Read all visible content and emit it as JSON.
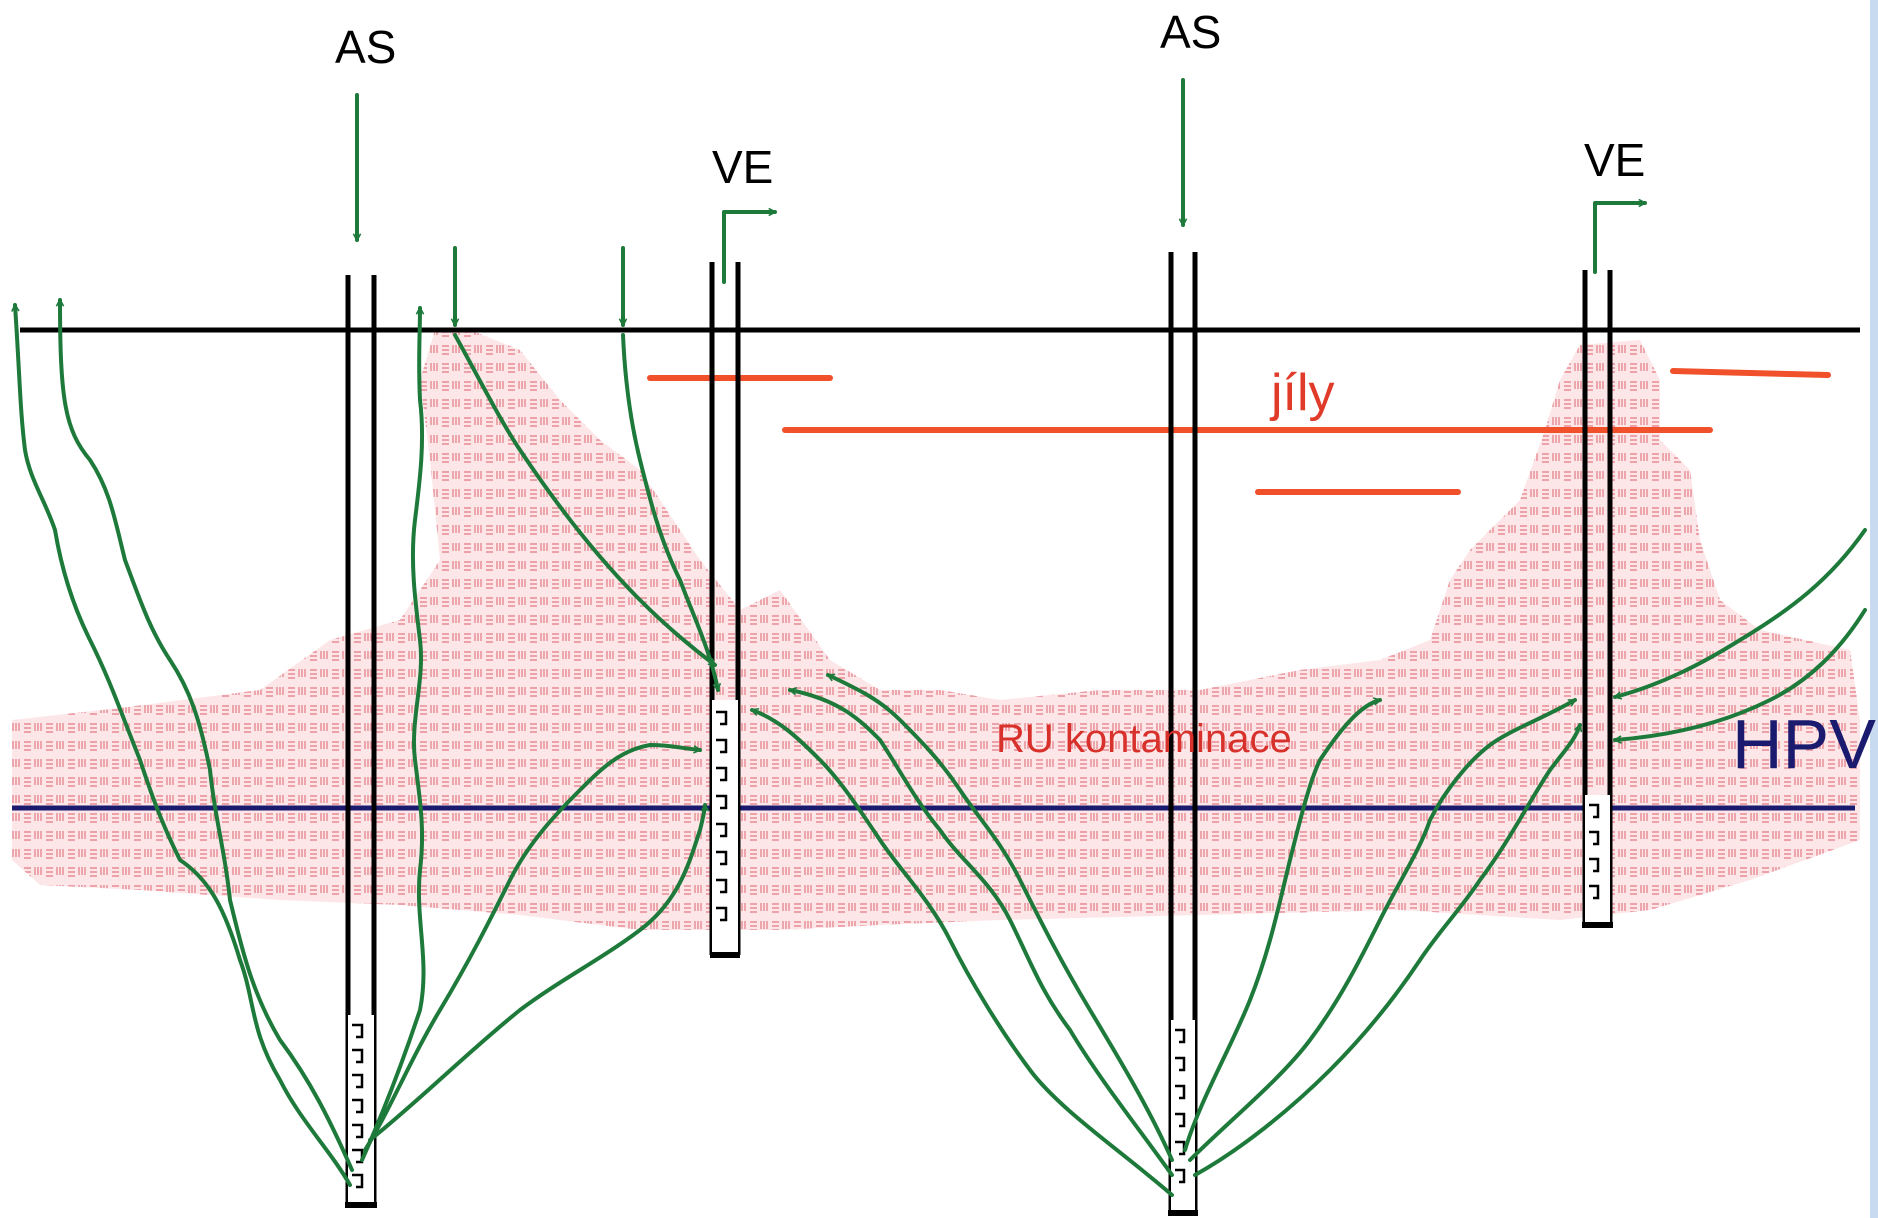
{
  "labels": {
    "as_left": "AS",
    "as_right": "AS",
    "ve_left": "VE",
    "ve_right": "VE",
    "clay": "jíly",
    "contamination": "RU kontaminace",
    "water_table": "HPV"
  },
  "colors": {
    "flow_arrows": "#1e7a3a",
    "ground_surface": "#000000",
    "clay_lenses": "#f0502a",
    "contamination_zone": "#f4a0a8",
    "water_table": "#1a1a6e",
    "right_edge_band": "#c8daf0"
  }
}
